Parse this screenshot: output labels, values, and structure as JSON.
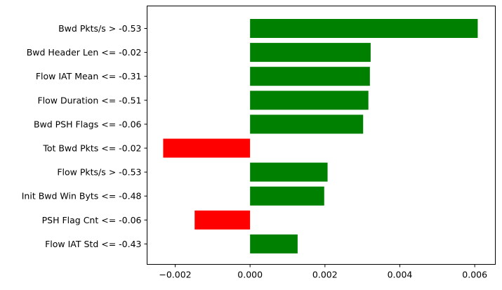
{
  "chart_data": {
    "type": "bar",
    "orientation": "horizontal",
    "title": "",
    "xlabel": "",
    "ylabel": "",
    "categories": [
      "Bwd Pkts/s > -0.53",
      "Bwd Header Len <= -0.02",
      "Flow IAT Mean <= -0.31",
      "Flow Duration <= -0.51",
      "Bwd PSH Flags <= -0.06",
      "Tot Bwd Pkts <= -0.02",
      "Flow Pkts/s > -0.53",
      "Init Bwd Win Byts <= -0.48",
      "PSH Flag Cnt <= -0.06",
      "Flow IAT Std <= -0.43"
    ],
    "values": [
      0.00608,
      0.00322,
      0.0032,
      0.00316,
      0.00302,
      -0.00232,
      0.00207,
      0.00198,
      -0.00148,
      0.00127
    ],
    "xlim": [
      -0.00275,
      0.00655
    ],
    "xticks": [
      -0.002,
      0.0,
      0.002,
      0.004,
      0.006
    ],
    "xtick_labels": [
      "−0.002",
      "0.000",
      "0.002",
      "0.004",
      "0.006"
    ],
    "grid": false,
    "colors": {
      "positive": "#008000",
      "negative": "#ff0000",
      "axis": "#000000"
    }
  }
}
